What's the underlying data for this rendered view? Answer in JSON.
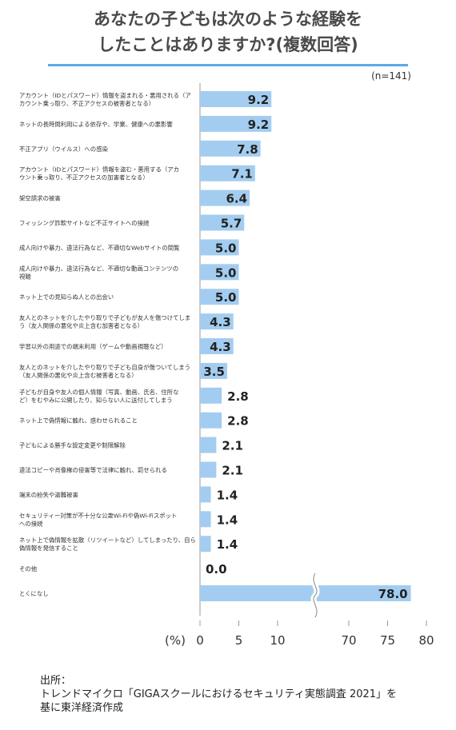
{
  "title_lines": [
    "あなたの子どもは次のような経験を",
    "したことはありますか?(複数回答)"
  ],
  "note": "(n=141)",
  "x_unit": "(%)",
  "source_lines": [
    "出所：",
    "トレンドマイクロ「GIGAスクールにおけるセキュリティ実態調査 2021」を",
    "基に東洋経済作成"
  ],
  "colors": {
    "bar": "#a3cdf0",
    "axis": "#999999",
    "title_rule": "#5aa9e6"
  },
  "chart_data": {
    "type": "bar",
    "orientation": "horizontal",
    "axis_break": {
      "from": 10,
      "to": 70
    },
    "xlim": [
      0,
      80
    ],
    "x_ticks": [
      0,
      5,
      10,
      70,
      75,
      80
    ],
    "categories": [
      [
        "アカウント（IDとパスワード）情報を盗まれる・悪用される（ア",
        "カウント乗っ取り、不正アクセスの被害者となる）"
      ],
      [
        "ネットの長時間利用による依存や、学業、健康への悪影響"
      ],
      [
        "不正アプリ（ウイルス）への感染"
      ],
      [
        "アカウント（IDとパスワード）情報を盗む・悪用する（アカ",
        "ウント乗っ取り、不正アクセスの加害者となる）"
      ],
      [
        "架空請求の被害"
      ],
      [
        "フィッシング詐欺サイトなど不正サイトへの接続"
      ],
      [
        "成人向けや暴力、違法行為など、不適切なWebサイトの閲覧"
      ],
      [
        "成人向けや暴力、違法行為など、不適切な動画コンテンツの",
        "視聴"
      ],
      [
        "ネット上での見知らぬ人との出会い"
      ],
      [
        "友人とのネットを介したやり取りで子どもが友人を傷つけてしま",
        "う（友人関係の悪化や炎上含む加害者となる）"
      ],
      [
        "学習以外の用途での端末利用（ゲームや動画視聴など）"
      ],
      [
        "友人とのネットを介したやり取りで子ども自身が傷ついてしまう",
        "（友人関係の悪化や炎上含む被害者となる）"
      ],
      [
        "子どもが自身や友人の個人情報（写真、動画、氏名、住所な",
        "ど）をむやみに公開したり、知らない人に送付してしまう"
      ],
      [
        "ネット上で偽情報に触れ、惑わせられること"
      ],
      [
        "子どもによる勝手な設定変更や制限解除"
      ],
      [
        "違法コピーや肖像権の侵害等で法律に触れ、罰せられる"
      ],
      [
        "端末の紛失や盗難被害"
      ],
      [
        "セキュリティー対策が不十分な公衆Wi-Fiや偽Wi-Fiスポット",
        "への接続"
      ],
      [
        "ネット上で偽情報を拡散（リツイートなど）してしまったり、自ら",
        "偽情報を発信すること"
      ],
      [
        "その他"
      ],
      [
        "とくになし"
      ]
    ],
    "values": [
      9.2,
      9.2,
      7.8,
      7.1,
      6.4,
      5.7,
      5.0,
      5.0,
      5.0,
      4.3,
      4.3,
      3.5,
      2.8,
      2.8,
      2.1,
      2.1,
      1.4,
      1.4,
      1.4,
      0.0,
      78.0
    ],
    "value_labels": [
      "9.2",
      "9.2",
      "7.8",
      "7.1",
      "6.4",
      "5.7",
      "5.0",
      "5.0",
      "5.0",
      "4.3",
      "4.3",
      "3.5",
      "2.8",
      "2.8",
      "2.1",
      "2.1",
      "1.4",
      "1.4",
      "1.4",
      "0.0",
      "78.0"
    ]
  }
}
